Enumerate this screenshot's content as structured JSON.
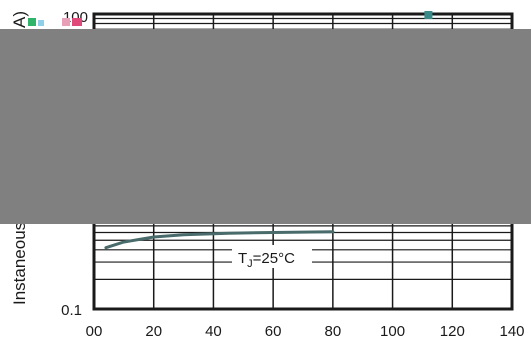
{
  "chart_data": {
    "type": "line",
    "x_ticks": [
      "00",
      "20",
      "40",
      "60",
      "80",
      "100",
      "120",
      "140"
    ],
    "y_ticks": [
      "0.1",
      "100"
    ],
    "ylabel_visible": "Instaneous",
    "ylabel_fragment": "A)",
    "annotation": "T",
    "annotation_sub": "J",
    "annotation_tail": "=25°C",
    "xlim": [
      0,
      140
    ],
    "ylim": [
      0.1,
      100
    ],
    "y_scale": "log",
    "grid": true,
    "line_color": "#4a6b6b",
    "series": [
      {
        "x": [
          4,
          10,
          20,
          30,
          45,
          60,
          80
        ],
        "y": [
          0.42,
          0.48,
          0.54,
          0.57,
          0.59,
          0.6,
          0.61
        ]
      }
    ]
  },
  "colors": {
    "occluder": "#808080",
    "frame": "#1a1a1a",
    "grid": "#1a1a1a",
    "marker": "#3a8a8a"
  }
}
